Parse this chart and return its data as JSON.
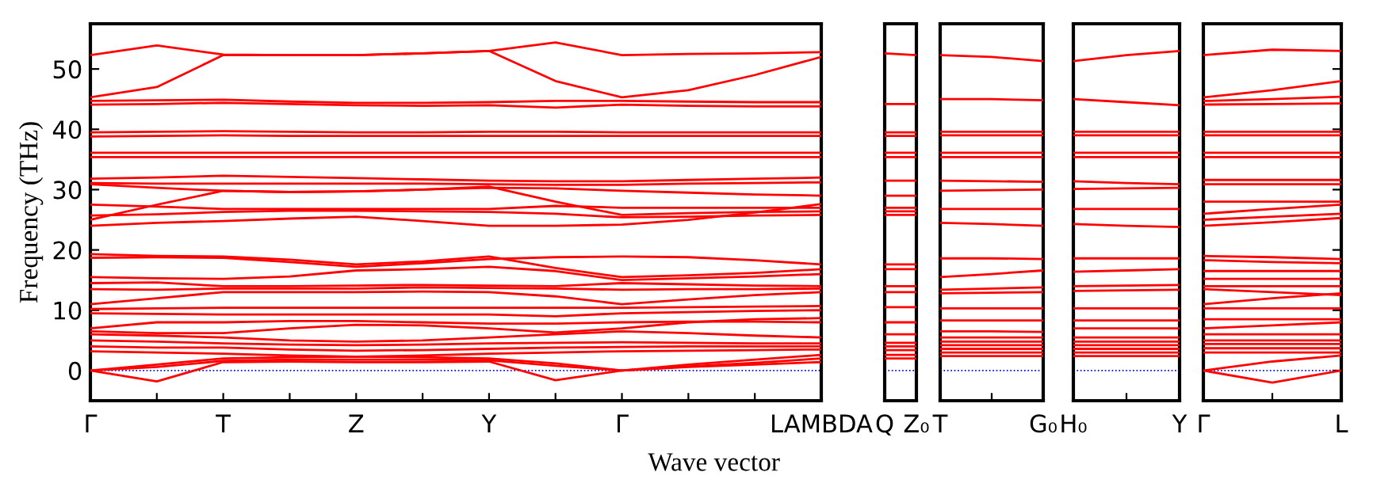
{
  "chart_data": [
    {
      "type": "line",
      "color": "#ff0000",
      "ylabel": "Frequency (THz)",
      "xlabel": "Wave vector",
      "ylim": [
        -5,
        57.5
      ],
      "yticks": [
        0,
        10,
        20,
        30,
        40,
        50
      ],
      "categories": [
        "Γ",
        null,
        "T",
        null,
        "Z",
        null,
        "Y",
        null,
        "Γ",
        null,
        null,
        "LAMBDA"
      ],
      "ref_lines": [
        {
          "axis": "y",
          "value": 0,
          "label": null,
          "color": "#0000ff",
          "line_style": "dotted"
        }
      ],
      "series": [
        {
          "values": [
            52.3,
            53.9,
            52.4,
            52.3,
            52.3,
            52.6,
            53.0,
            54.4,
            52.3,
            52.5,
            52.6,
            52.8
          ]
        },
        {
          "values": [
            45.3,
            47.0,
            52.3,
            52.3,
            52.3,
            52.6,
            53.0,
            48.0,
            45.3,
            46.5,
            49.0,
            52.0
          ]
        },
        {
          "values": [
            44.7,
            44.8,
            44.9,
            44.6,
            44.4,
            44.4,
            44.5,
            44.7,
            44.7,
            44.6,
            44.5,
            44.5
          ]
        },
        {
          "values": [
            44.1,
            44.2,
            44.4,
            44.2,
            44.0,
            43.9,
            44.0,
            43.6,
            44.1,
            43.9,
            43.8,
            43.8
          ]
        },
        {
          "values": [
            39.5,
            39.6,
            39.7,
            39.6,
            39.5,
            39.5,
            39.6,
            39.6,
            39.5,
            39.5,
            39.5,
            39.5
          ]
        },
        {
          "values": [
            38.8,
            38.9,
            39.0,
            38.9,
            38.9,
            38.9,
            38.9,
            38.9,
            38.9,
            38.9,
            38.9,
            38.9
          ]
        },
        {
          "values": [
            36.1,
            36.1,
            36.1,
            36.1,
            36.1,
            36.1,
            36.1,
            36.1,
            36.1,
            36.1,
            36.1,
            36.1
          ]
        },
        {
          "values": [
            35.4,
            35.4,
            35.4,
            35.4,
            35.4,
            35.4,
            35.4,
            35.4,
            35.4,
            35.4,
            35.4,
            35.4
          ]
        },
        {
          "values": [
            31.8,
            32.0,
            32.3,
            32.1,
            31.9,
            31.7,
            31.5,
            31.4,
            31.4,
            31.6,
            31.8,
            32.0
          ]
        },
        {
          "values": [
            30.9,
            30.3,
            29.8,
            29.6,
            29.7,
            30.0,
            30.3,
            30.2,
            29.8,
            29.5,
            29.2,
            29.0
          ]
        },
        {
          "values": [
            31.1,
            31.0,
            31.0,
            31.0,
            31.0,
            31.0,
            30.9,
            30.8,
            30.8,
            31.0,
            31.1,
            31.2
          ]
        },
        {
          "values": [
            27.5,
            27.2,
            26.8,
            26.8,
            26.8,
            26.8,
            26.8,
            27.3,
            27.0,
            27.0,
            27.0,
            27.0
          ]
        },
        {
          "values": [
            25.0,
            27.5,
            29.8,
            29.6,
            29.7,
            30.0,
            30.5,
            28.0,
            25.8,
            26.1,
            26.3,
            26.4
          ]
        },
        {
          "values": [
            25.7,
            25.9,
            26.3,
            26.5,
            26.5,
            26.4,
            26.3,
            26.0,
            25.4,
            25.5,
            25.7,
            25.8
          ]
        },
        {
          "values": [
            24.0,
            24.5,
            24.8,
            25.2,
            25.5,
            24.8,
            24.0,
            24.0,
            24.2,
            25.0,
            26.2,
            27.6
          ]
        },
        {
          "values": [
            18.7,
            18.8,
            18.7,
            18.0,
            17.2,
            17.8,
            18.5,
            18.8,
            18.9,
            18.8,
            18.3,
            17.6
          ]
        },
        {
          "values": [
            19.3,
            19.0,
            18.9,
            18.4,
            17.6,
            18.1,
            18.9,
            17.0,
            15.5,
            15.8,
            16.2,
            16.8
          ]
        },
        {
          "values": [
            15.5,
            15.3,
            15.2,
            15.6,
            16.6,
            16.8,
            17.2,
            16.5,
            15.0,
            15.3,
            15.6,
            16.0
          ]
        },
        {
          "values": [
            14.5,
            14.6,
            14.0,
            14.0,
            14.1,
            14.2,
            14.1,
            14.0,
            14.5,
            14.3,
            14.1,
            14.0
          ]
        },
        {
          "values": [
            11.0,
            12.0,
            13.0,
            13.0,
            13.0,
            13.1,
            13.0,
            12.3,
            11.0,
            11.8,
            12.5,
            13.0
          ]
        },
        {
          "values": [
            13.5,
            13.4,
            13.6,
            13.6,
            13.6,
            13.8,
            13.7,
            13.6,
            13.4,
            13.5,
            13.5,
            13.6
          ]
        },
        {
          "values": [
            10.2,
            10.3,
            10.4,
            10.4,
            10.4,
            10.4,
            10.4,
            10.4,
            10.4,
            10.5,
            10.6,
            10.7
          ]
        },
        {
          "values": [
            9.5,
            9.4,
            9.3,
            9.3,
            9.3,
            9.3,
            9.3,
            9.0,
            9.5,
            9.7,
            9.9,
            10.0
          ]
        },
        {
          "values": [
            7.0,
            8.0,
            8.0,
            8.2,
            8.2,
            8.0,
            7.8,
            7.8,
            8.0,
            8.1,
            8.1,
            8.0
          ]
        },
        {
          "values": [
            6.5,
            6.2,
            6.2,
            7.0,
            7.6,
            7.5,
            7.0,
            6.3,
            7.0,
            8.0,
            8.5,
            8.7
          ]
        },
        {
          "values": [
            6.0,
            5.8,
            5.5,
            5.0,
            4.8,
            5.0,
            5.5,
            6.0,
            6.5,
            6.2,
            5.8,
            5.5
          ]
        },
        {
          "values": [
            5.0,
            4.8,
            4.5,
            4.3,
            4.2,
            4.3,
            4.5,
            4.6,
            4.7,
            4.6,
            4.5,
            4.5
          ]
        },
        {
          "values": [
            4.0,
            3.8,
            3.8,
            3.5,
            3.3,
            3.4,
            3.6,
            3.8,
            3.9,
            4.0,
            4.0,
            4.0
          ]
        },
        {
          "values": [
            3.2,
            3.0,
            2.8,
            2.5,
            2.3,
            2.5,
            2.8,
            3.0,
            3.2,
            3.3,
            3.4,
            3.5
          ]
        },
        {
          "values": [
            0,
            1.0,
            2.0,
            2.2,
            2.3,
            2.2,
            2.0,
            1.2,
            0,
            1.0,
            1.8,
            2.6
          ]
        },
        {
          "values": [
            0,
            0.6,
            1.6,
            1.8,
            1.8,
            1.8,
            1.7,
            0.8,
            0,
            0.7,
            1.3,
            2.0
          ]
        },
        {
          "values": [
            0,
            -1.8,
            1.4,
            1.5,
            1.4,
            1.4,
            1.5,
            -1.6,
            0,
            0.6,
            1.0,
            1.4
          ]
        }
      ]
    },
    {
      "type": "line",
      "color": "#ff0000",
      "ylim": [
        -5,
        57.5
      ],
      "tick_labels": "x",
      "categories": [
        "Q",
        "Z₀"
      ],
      "yticks": [
        0,
        10,
        20,
        30,
        40,
        50
      ],
      "ref_lines": [
        {
          "axis": "y",
          "value": 0,
          "label": null,
          "color": "#0000ff",
          "line_style": "dotted"
        }
      ],
      "series": [
        {
          "values": [
            52.6,
            52.3
          ]
        },
        {
          "values": [
            44.2,
            44.2
          ]
        },
        {
          "values": [
            39.5,
            39.5
          ]
        },
        {
          "values": [
            38.9,
            38.9
          ]
        },
        {
          "values": [
            36.1,
            36.1
          ]
        },
        {
          "values": [
            35.4,
            35.4
          ]
        },
        {
          "values": [
            31.5,
            31.5
          ]
        },
        {
          "values": [
            29.0,
            29.0
          ]
        },
        {
          "values": [
            27.0,
            27.0
          ]
        },
        {
          "values": [
            26.4,
            26.4
          ]
        },
        {
          "values": [
            25.8,
            25.8
          ]
        },
        {
          "values": [
            17.6,
            17.6
          ]
        },
        {
          "values": [
            16.8,
            16.8
          ]
        },
        {
          "values": [
            14.0,
            14.0
          ]
        },
        {
          "values": [
            13.0,
            13.0
          ]
        },
        {
          "values": [
            10.5,
            10.5
          ]
        },
        {
          "values": [
            8.0,
            8.0
          ]
        },
        {
          "values": [
            6.0,
            6.0
          ]
        },
        {
          "values": [
            4.6,
            4.6
          ]
        },
        {
          "values": [
            4.0,
            4.0
          ]
        },
        {
          "values": [
            3.4,
            3.4
          ]
        },
        {
          "values": [
            2.6,
            2.6
          ]
        },
        {
          "values": [
            2.0,
            2.0
          ]
        }
      ]
    },
    {
      "type": "line",
      "color": "#ff0000",
      "ylim": [
        -5,
        57.5
      ],
      "tick_labels": "x",
      "categories": [
        "T",
        null,
        "G₀"
      ],
      "yticks": [
        0,
        10,
        20,
        30,
        40,
        50
      ],
      "ref_lines": [
        {
          "axis": "y",
          "value": 0,
          "label": null,
          "color": "#0000ff",
          "line_style": "dotted"
        }
      ],
      "series": [
        {
          "values": [
            52.3,
            52.0,
            51.3
          ]
        },
        {
          "values": [
            45.0,
            45.0,
            44.8
          ]
        },
        {
          "values": [
            39.6,
            39.6,
            39.6
          ]
        },
        {
          "values": [
            39.0,
            39.0,
            39.0
          ]
        },
        {
          "values": [
            36.1,
            36.1,
            36.1
          ]
        },
        {
          "values": [
            35.4,
            35.4,
            35.4
          ]
        },
        {
          "values": [
            31.5,
            31.4,
            31.3
          ]
        },
        {
          "values": [
            29.8,
            29.9,
            30.0
          ]
        },
        {
          "values": [
            26.8,
            26.8,
            26.8
          ]
        },
        {
          "values": [
            24.5,
            24.3,
            24.0
          ]
        },
        {
          "values": [
            18.6,
            18.6,
            18.5
          ]
        },
        {
          "values": [
            15.5,
            16.0,
            16.6
          ]
        },
        {
          "values": [
            13.4,
            13.6,
            13.8
          ]
        },
        {
          "values": [
            12.8,
            12.9,
            13.0
          ]
        },
        {
          "values": [
            10.3,
            10.3,
            10.3
          ]
        },
        {
          "values": [
            8.3,
            8.3,
            8.3
          ]
        },
        {
          "values": [
            6.5,
            6.5,
            6.4
          ]
        },
        {
          "values": [
            5.5,
            5.5,
            5.5
          ]
        },
        {
          "values": [
            4.8,
            4.8,
            4.8
          ]
        },
        {
          "values": [
            4.2,
            4.2,
            4.2
          ]
        },
        {
          "values": [
            3.6,
            3.6,
            3.6
          ]
        },
        {
          "values": [
            3.0,
            3.0,
            3.0
          ]
        },
        {
          "values": [
            2.4,
            2.4,
            2.4
          ]
        }
      ]
    },
    {
      "type": "line",
      "color": "#ff0000",
      "ylim": [
        -5,
        57.5
      ],
      "tick_labels": "x",
      "categories": [
        "H₀",
        null,
        "Y"
      ],
      "yticks": [
        0,
        10,
        20,
        30,
        40,
        50
      ],
      "ref_lines": [
        {
          "axis": "y",
          "value": 0,
          "label": null,
          "color": "#0000ff",
          "line_style": "dotted"
        }
      ],
      "series": [
        {
          "values": [
            51.3,
            52.3,
            53.0
          ]
        },
        {
          "values": [
            45.0,
            44.5,
            44.0
          ]
        },
        {
          "values": [
            39.6,
            39.6,
            39.6
          ]
        },
        {
          "values": [
            39.0,
            39.0,
            39.0
          ]
        },
        {
          "values": [
            36.1,
            36.1,
            36.1
          ]
        },
        {
          "values": [
            35.4,
            35.4,
            35.4
          ]
        },
        {
          "values": [
            31.4,
            31.1,
            30.9
          ]
        },
        {
          "values": [
            30.1,
            30.2,
            30.3
          ]
        },
        {
          "values": [
            26.8,
            26.8,
            26.8
          ]
        },
        {
          "values": [
            24.3,
            24.0,
            23.8
          ]
        },
        {
          "values": [
            18.6,
            18.6,
            18.6
          ]
        },
        {
          "values": [
            16.4,
            16.6,
            16.8
          ]
        },
        {
          "values": [
            14.0,
            14.1,
            14.2
          ]
        },
        {
          "values": [
            13.2,
            13.3,
            13.4
          ]
        },
        {
          "values": [
            10.3,
            10.3,
            10.3
          ]
        },
        {
          "values": [
            8.3,
            8.3,
            8.3
          ]
        },
        {
          "values": [
            7.0,
            7.0,
            7.0
          ]
        },
        {
          "values": [
            5.5,
            5.5,
            5.5
          ]
        },
        {
          "values": [
            4.8,
            4.8,
            4.8
          ]
        },
        {
          "values": [
            4.2,
            4.2,
            4.2
          ]
        },
        {
          "values": [
            3.6,
            3.6,
            3.6
          ]
        },
        {
          "values": [
            3.0,
            3.0,
            3.0
          ]
        },
        {
          "values": [
            2.4,
            2.4,
            2.4
          ]
        }
      ]
    },
    {
      "type": "line",
      "color": "#ff0000",
      "ylim": [
        -5,
        57.5
      ],
      "tick_labels": "x",
      "categories": [
        "Γ",
        null,
        "L"
      ],
      "yticks": [
        0,
        10,
        20,
        30,
        40,
        50
      ],
      "ref_lines": [
        {
          "axis": "y",
          "value": 0,
          "label": null,
          "color": "#0000ff",
          "line_style": "dotted"
        }
      ],
      "series": [
        {
          "values": [
            52.3,
            53.2,
            53.0
          ]
        },
        {
          "values": [
            45.3,
            46.5,
            48.0
          ]
        },
        {
          "values": [
            44.7,
            45.0,
            45.4
          ]
        },
        {
          "values": [
            44.1,
            44.2,
            44.3
          ]
        },
        {
          "values": [
            39.6,
            39.6,
            39.6
          ]
        },
        {
          "values": [
            39.0,
            39.0,
            39.0
          ]
        },
        {
          "values": [
            36.1,
            36.1,
            36.1
          ]
        },
        {
          "values": [
            35.4,
            35.4,
            35.4
          ]
        },
        {
          "values": [
            31.6,
            31.6,
            31.6
          ]
        },
        {
          "values": [
            30.9,
            30.9,
            30.9
          ]
        },
        {
          "values": [
            28.0,
            28.0,
            28.0
          ]
        },
        {
          "values": [
            26.0,
            26.8,
            27.5
          ]
        },
        {
          "values": [
            25.0,
            25.5,
            26.0
          ]
        },
        {
          "values": [
            24.0,
            24.6,
            25.3
          ]
        },
        {
          "values": [
            19.0,
            18.8,
            18.5
          ]
        },
        {
          "values": [
            18.3,
            18.0,
            17.8
          ]
        },
        {
          "values": [
            16.5,
            16.5,
            16.5
          ]
        },
        {
          "values": [
            15.2,
            15.2,
            15.2
          ]
        },
        {
          "values": [
            14.0,
            14.0,
            14.0
          ]
        },
        {
          "values": [
            13.5,
            13.0,
            12.5
          ]
        },
        {
          "values": [
            11.0,
            12.0,
            12.8
          ]
        },
        {
          "values": [
            10.3,
            10.3,
            10.3
          ]
        },
        {
          "values": [
            8.5,
            8.5,
            8.5
          ]
        },
        {
          "values": [
            7.0,
            7.5,
            8.0
          ]
        },
        {
          "values": [
            6.0,
            6.0,
            6.0
          ]
        },
        {
          "values": [
            5.0,
            5.0,
            5.0
          ]
        },
        {
          "values": [
            4.4,
            4.4,
            4.4
          ]
        },
        {
          "values": [
            3.7,
            3.7,
            3.7
          ]
        },
        {
          "values": [
            3.0,
            3.0,
            3.0
          ]
        },
        {
          "values": [
            0,
            1.5,
            2.5
          ]
        },
        {
          "values": [
            0,
            -2.0,
            0
          ]
        }
      ]
    }
  ]
}
